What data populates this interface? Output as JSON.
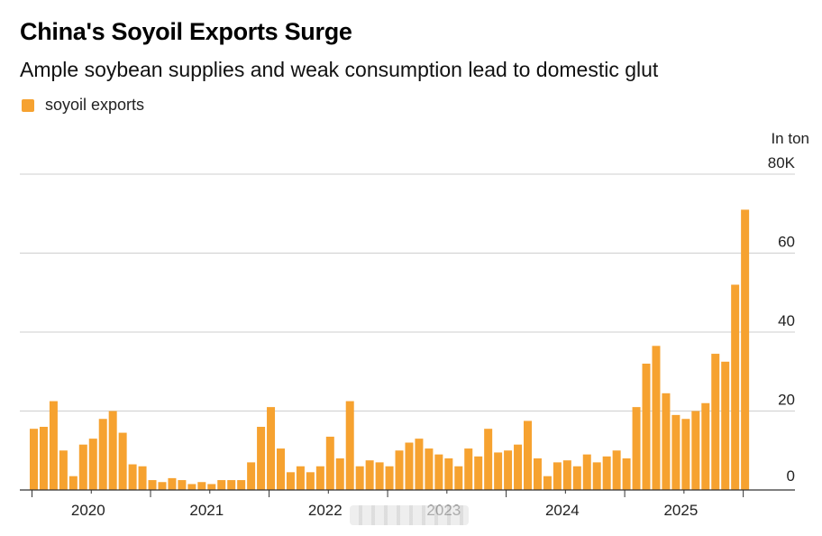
{
  "chart_data": {
    "type": "bar",
    "title": "China's Soyoil Exports Surge",
    "subtitle": "Ample soybean supplies and weak consumption lead to domestic glut",
    "legend": [
      {
        "name": "soyoil exports",
        "color": "#f6a230"
      }
    ],
    "unit_label": "In ton",
    "y_ticks": [
      {
        "value": 0,
        "label": "0"
      },
      {
        "value": 20,
        "label": "20"
      },
      {
        "value": 40,
        "label": "40"
      },
      {
        "value": 60,
        "label": "60"
      },
      {
        "value": 80,
        "label": "80K"
      }
    ],
    "ylim": [
      0,
      80
    ],
    "x_ticks": [
      {
        "index": 0,
        "label": "2020"
      },
      {
        "index": 12,
        "label": "2021"
      },
      {
        "index": 24,
        "label": "2022"
      },
      {
        "index": 36,
        "label": "2023"
      },
      {
        "index": 48,
        "label": "2024"
      },
      {
        "index": 60,
        "label": "2025"
      }
    ],
    "series": [
      {
        "name": "soyoil exports",
        "color": "#f6a230",
        "values": [
          15.5,
          16,
          22.5,
          10,
          3.5,
          11.5,
          13,
          18,
          20,
          14.5,
          6.5,
          6,
          2.5,
          2,
          3,
          2.5,
          1.5,
          2,
          1.5,
          2.5,
          2.5,
          2.5,
          7,
          16,
          21,
          10.5,
          4.5,
          6,
          4.5,
          6,
          13.5,
          8,
          22.5,
          6,
          7.5,
          7,
          6,
          10,
          12,
          13,
          10.5,
          9,
          8,
          6,
          10.5,
          8.5,
          15.5,
          9.5,
          10,
          11.5,
          17.5,
          8,
          3.5,
          7,
          7.5,
          6,
          9,
          7,
          8.5,
          10,
          8,
          21,
          32,
          36.5,
          24.5,
          19,
          18,
          20,
          22,
          34.5,
          32.5,
          52,
          71
        ]
      }
    ]
  }
}
